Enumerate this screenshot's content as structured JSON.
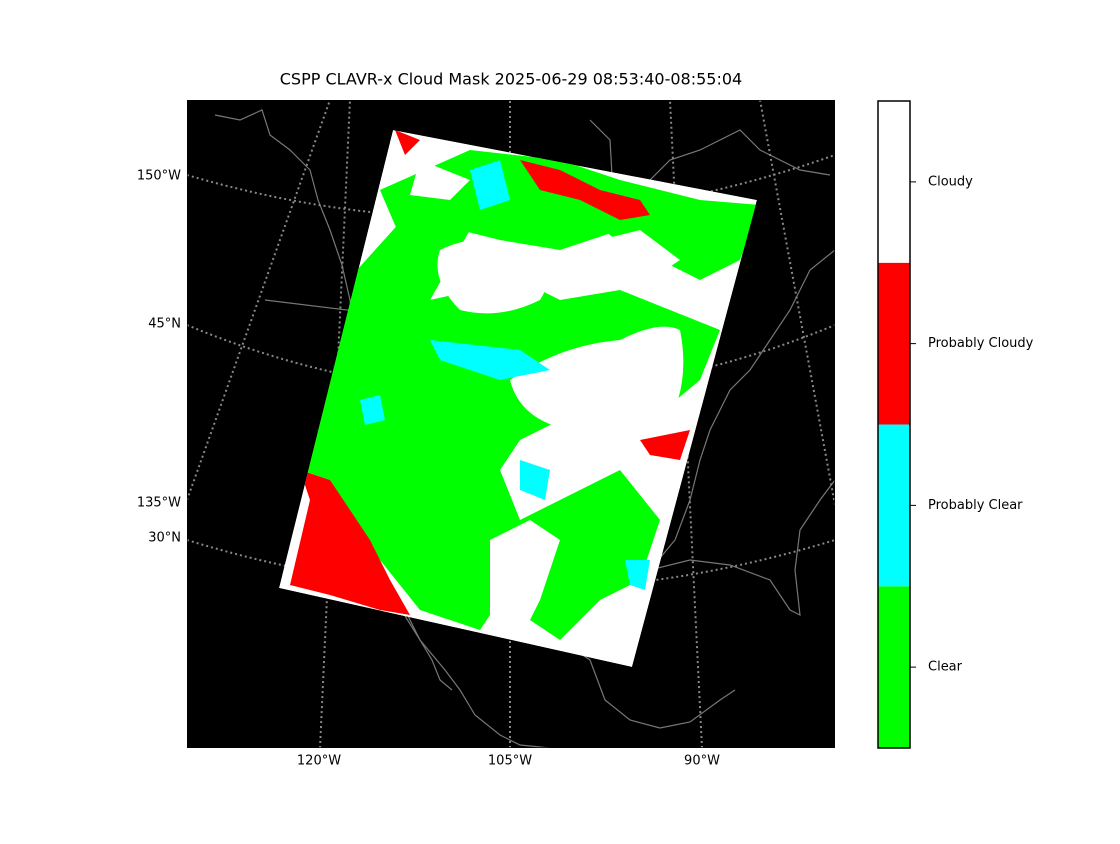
{
  "title": "CSPP CLAVR-x Cloud Mask 2025-06-29 08:53:40-08:55:04",
  "map": {
    "left_labels": [
      "150°W",
      "45°N",
      "135°W",
      "30°N"
    ],
    "bottom_labels": [
      "120°W",
      "105°W",
      "90°W"
    ]
  },
  "colorbar": {
    "classes": [
      {
        "label": "Clear",
        "color": "#00ff00"
      },
      {
        "label": "Probably Clear",
        "color": "#00ffff"
      },
      {
        "label": "Probably Cloudy",
        "color": "#ff0000"
      },
      {
        "label": "Cloudy",
        "color": "#ffffff"
      }
    ]
  }
}
